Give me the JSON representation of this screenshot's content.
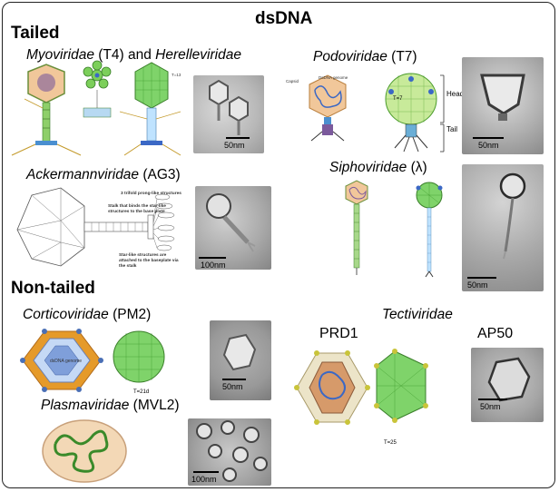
{
  "title": "dsDNA",
  "sections": {
    "tailed": "Tailed",
    "non_tailed": "Non-tailed"
  },
  "families": {
    "myoviridae": {
      "name_a": "Myoviridae",
      "strain": "(T4) and",
      "name_b": "Herelleviridae"
    },
    "podoviridae": {
      "name": "Podoviridae",
      "strain": "(T7)"
    },
    "ackermannviridae": {
      "name": "Ackermannviridae",
      "strain": "(AG3)"
    },
    "siphoviridae": {
      "name": "Siphoviridae",
      "strain": "(λ)"
    },
    "corticoviridae": {
      "name": "Corticoviridae",
      "strain": "(PM2)"
    },
    "tectiviridae": {
      "name": "Tectiviridae"
    },
    "plasmaviridae": {
      "name": "Plasmaviridae",
      "strain": "(MVL2)"
    }
  },
  "strains": {
    "prd1": "PRD1",
    "ap50": "AP50"
  },
  "scale_bars": {
    "myo": "50nm",
    "podo": "50nm",
    "acker": "100nm",
    "sipho": "50nm",
    "cortico": "50nm",
    "plasma": "100nm",
    "ap50": "50nm"
  },
  "diagram_labels": {
    "myo_head_t": "T=13",
    "podo_head_label": "Head",
    "podo_tail_label": "Tail",
    "podo_t": "T=7",
    "podo_capsid": "Capsid",
    "podo_genome": "DsDNA genome",
    "acker_stalk": "Stalk that binds the star-like structures to the base plate",
    "acker_prongs": "3 trifold prong-like structures",
    "acker_star": "Star-like structures are attached to the baseplate via the stalk",
    "cortico_t": "T=21d",
    "cortico_genome": "dsDNA genome",
    "tecti_t": "T=25"
  }
}
